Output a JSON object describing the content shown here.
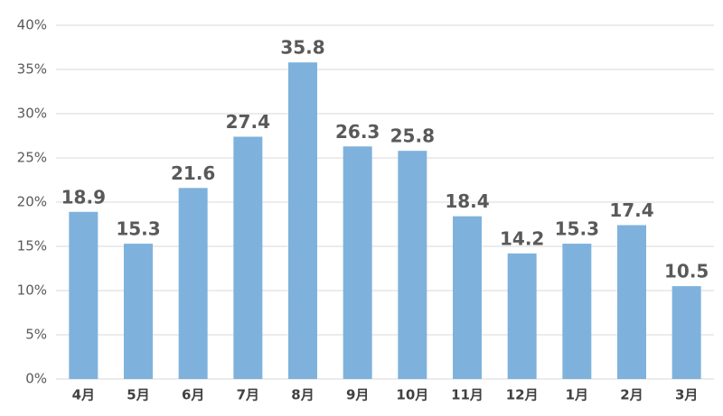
{
  "chart_data": {
    "type": "bar",
    "categories": [
      "4月",
      "5月",
      "6月",
      "7月",
      "8月",
      "9月",
      "10月",
      "11月",
      "12月",
      "1月",
      "2月",
      "3月"
    ],
    "values": [
      18.9,
      15.3,
      21.6,
      27.4,
      35.8,
      26.3,
      25.8,
      18.4,
      14.2,
      15.3,
      17.4,
      10.5
    ],
    "color": "#7eb2dc",
    "ylim": [
      0,
      40
    ],
    "yticks": [
      {
        "value": 0,
        "label": "0%"
      },
      {
        "value": 5,
        "label": "5%"
      },
      {
        "value": 10,
        "label": "10%"
      },
      {
        "value": 15,
        "label": "15%"
      },
      {
        "value": 20,
        "label": "20%"
      },
      {
        "value": 25,
        "label": "25%"
      },
      {
        "value": 30,
        "label": "30%"
      },
      {
        "value": 35,
        "label": "35%"
      },
      {
        "value": 40,
        "label": "40%"
      }
    ],
    "grid": true
  }
}
